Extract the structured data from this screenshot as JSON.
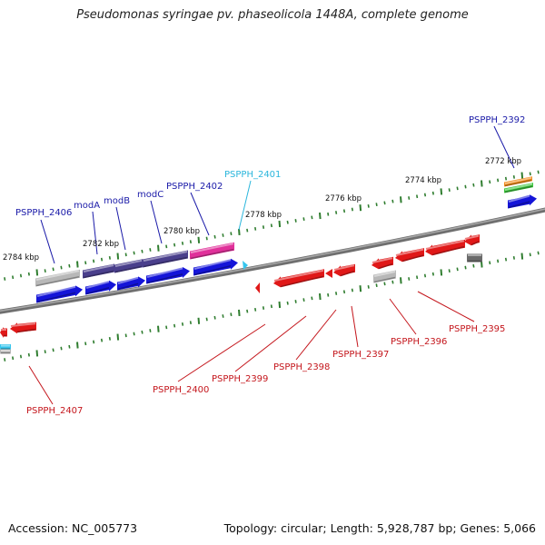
{
  "title": "Pseudomonas syringae pv. phaseolicola 1448A, complete genome",
  "footer": {
    "accession": "Accession: NC_005773",
    "summary": "Topology: circular; Length: 5,928,787 bp; Genes: 5,066"
  },
  "colors": {
    "backbone": "#7a7a7a",
    "tick": "#2f7d2f",
    "forward_cds": "#1414d8",
    "reverse_cds": "#e01818",
    "operon": "#4a3f8c",
    "magenta": "#e0309a",
    "grey_gene": "#b8b8b8",
    "dark_grey_gene": "#6a6a6a",
    "orange": "#f08a1c",
    "green": "#3cc43c",
    "cyan": "#36c6ee"
  },
  "ruler": {
    "tick_labels": [
      "2784 kbp",
      "2782 kbp",
      "2780 kbp",
      "2778 kbp",
      "2776 kbp",
      "2774 kbp",
      "2772 kbp"
    ]
  },
  "labels": {
    "forward": [
      "PSPPH_2406",
      "modA",
      "modB",
      "modC",
      "PSPPH_2402",
      "PSPPH_2401",
      "PSPPH_2392"
    ],
    "reverse": [
      "PSPPH_2407",
      "PSPPH_2400",
      "PSPPH_2399",
      "PSPPH_2398",
      "PSPPH_2397",
      "PSPPH_2396",
      "PSPPH_2395"
    ]
  }
}
